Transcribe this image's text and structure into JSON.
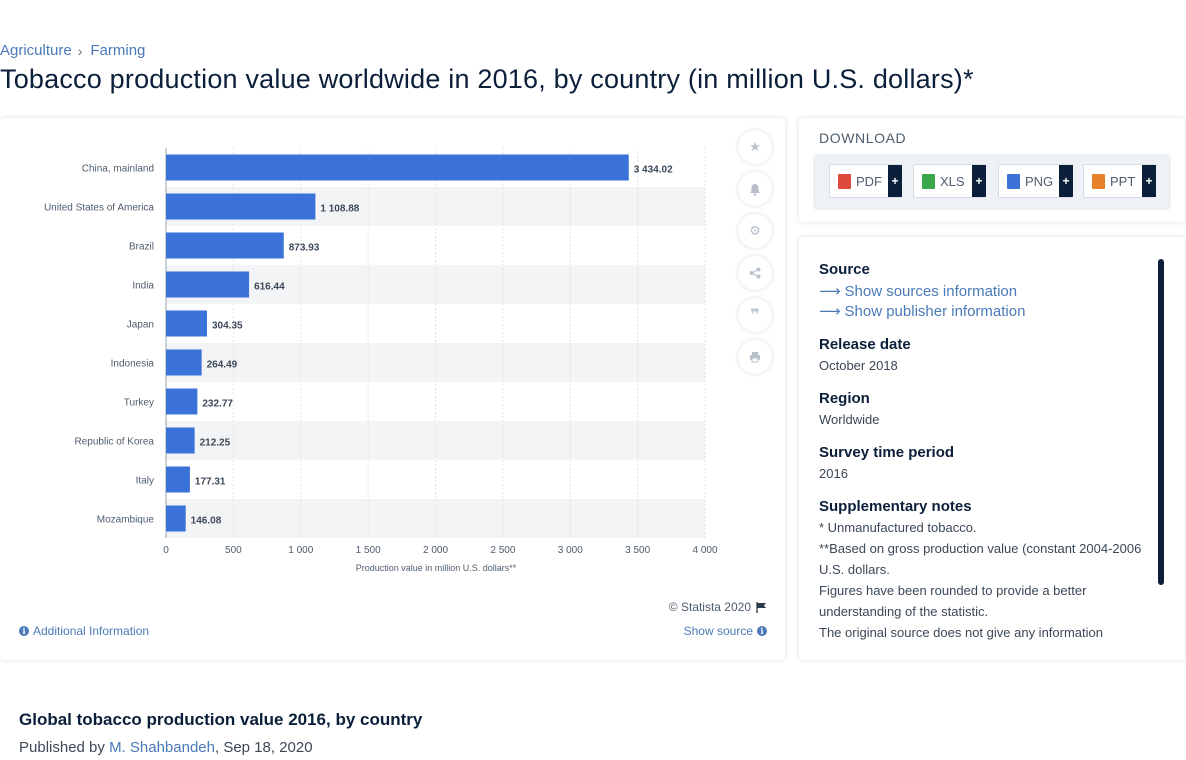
{
  "breadcrumb": {
    "items": [
      "Agriculture",
      "Farming"
    ],
    "separator": "›"
  },
  "title": "Tobacco production value worldwide in 2016, by country (in million U.S. dollars)*",
  "chart_data": {
    "type": "bar",
    "orientation": "horizontal",
    "categories": [
      "China, mainland",
      "United States of America",
      "Brazil",
      "India",
      "Japan",
      "Indonesia",
      "Turkey",
      "Republic of Korea",
      "Italy",
      "Mozambique"
    ],
    "values": [
      3434.02,
      1108.88,
      873.93,
      616.44,
      304.35,
      264.49,
      232.77,
      212.25,
      177.31,
      146.08
    ],
    "value_labels": [
      "3 434.02",
      "1 108.88",
      "873.93",
      "616.44",
      "304.35",
      "264.49",
      "232.77",
      "212.25",
      "177.31",
      "146.08"
    ],
    "xlabel": "Production value in million U.S. dollars**",
    "ylabel": "",
    "xlim": [
      0,
      4000
    ],
    "ticks": [
      0,
      500,
      1000,
      1500,
      2000,
      2500,
      3000,
      3500,
      4000
    ],
    "tick_labels": [
      "0",
      "500",
      "1 000",
      "1 500",
      "2 000",
      "2 500",
      "3 000",
      "3 500",
      "4 000"
    ],
    "grid": true,
    "bar_color": "#3a72d8"
  },
  "tools": [
    "star-icon",
    "bell-icon",
    "gear-icon",
    "share-icon",
    "quote-icon",
    "print-icon"
  ],
  "footer": {
    "copyright": "© Statista 2020",
    "additional_info": "Additional Information",
    "show_source": "Show source"
  },
  "download": {
    "title": "DOWNLOAD",
    "buttons": [
      {
        "label": "PDF",
        "color": "#e04a3a"
      },
      {
        "label": "XLS",
        "color": "#3aa84a"
      },
      {
        "label": "PNG",
        "color": "#3a72d8"
      },
      {
        "label": "PPT",
        "color": "#e8822a"
      }
    ],
    "plus": "+"
  },
  "source": {
    "source_heading": "Source",
    "show_sources": "Show sources information",
    "show_publisher": "Show publisher information",
    "release_heading": "Release date",
    "release_value": "October 2018",
    "region_heading": "Region",
    "region_value": "Worldwide",
    "period_heading": "Survey time period",
    "period_value": "2016",
    "notes_heading": "Supplementary notes",
    "note1": "* Unmanufactured tobacco.",
    "note2": "**Based on gross production value (constant 2004-2006 U.S. dollars.",
    "note3": "Figures have been rounded to provide a better understanding of the statistic.",
    "note4": "The original source does not give any information"
  },
  "publication": {
    "title": "Global tobacco production value 2016, by country",
    "published_by": "Published by",
    "author": "M. Shahbandeh",
    "date": ", Sep 18, 2020"
  },
  "colors": {
    "accent": "#4a7ab8",
    "navy": "#0b1f3a"
  }
}
